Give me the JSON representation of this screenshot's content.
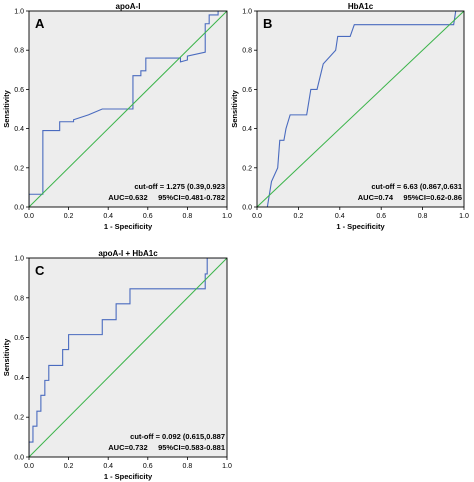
{
  "chart_data": [
    {
      "type": "line",
      "panel_letter": "A",
      "title": "apoA-I",
      "xlabel": "1 - Specificity",
      "ylabel": "Sensitivity",
      "xlim": [
        0,
        1
      ],
      "ylim": [
        0,
        1
      ],
      "xticks": [
        "0.0",
        "0.2",
        "0.4",
        "0.6",
        "0.8",
        "1.0"
      ],
      "yticks": [
        "0.0",
        "0.2",
        "0.4",
        "0.6",
        "0.8",
        "1.0"
      ],
      "grid": false,
      "series": [
        {
          "role": "roc-curve",
          "color": "#4a6bbf",
          "points": [
            [
              0,
              0
            ],
            [
              0,
              0.065
            ],
            [
              0.07,
              0.065
            ],
            [
              0.07,
              0.39
            ],
            [
              0.155,
              0.39
            ],
            [
              0.155,
              0.435
            ],
            [
              0.225,
              0.435
            ],
            [
              0.225,
              0.445
            ],
            [
              0.3,
              0.47
            ],
            [
              0.37,
              0.5
            ],
            [
              0.525,
              0.5
            ],
            [
              0.525,
              0.67
            ],
            [
              0.565,
              0.67
            ],
            [
              0.565,
              0.695
            ],
            [
              0.59,
              0.695
            ],
            [
              0.59,
              0.76
            ],
            [
              0.765,
              0.76
            ],
            [
              0.765,
              0.74
            ],
            [
              0.8,
              0.75
            ],
            [
              0.8,
              0.77
            ],
            [
              0.89,
              0.79
            ],
            [
              0.89,
              0.935
            ],
            [
              0.91,
              0.935
            ],
            [
              0.91,
              0.98
            ],
            [
              0.955,
              0.98
            ],
            [
              0.955,
              1
            ],
            [
              1,
              1
            ]
          ]
        },
        {
          "role": "reference-line",
          "color": "#3cb44b",
          "points": [
            [
              0,
              0
            ],
            [
              1,
              1
            ]
          ]
        }
      ],
      "annotation_lines": [
        "cut-off = 1.275 (0.39,0.923",
        "AUC=0.632     95%CI=0.481-0.782"
      ]
    },
    {
      "type": "line",
      "panel_letter": "B",
      "title": "HbA1c",
      "xlabel": "1 - Specificity",
      "ylabel": "Sensitivity",
      "xlim": [
        0,
        1
      ],
      "ylim": [
        0,
        1
      ],
      "xticks": [
        "0.0",
        "0.2",
        "0.4",
        "0.6",
        "0.8",
        "1.0"
      ],
      "yticks": [
        "0.0",
        "0.2",
        "0.4",
        "0.6",
        "0.8",
        "1.0"
      ],
      "grid": false,
      "series": [
        {
          "role": "roc-curve",
          "color": "#4a6bbf",
          "points": [
            [
              0.05,
              0
            ],
            [
              0.07,
              0.13
            ],
            [
              0.1,
              0.2
            ],
            [
              0.11,
              0.34
            ],
            [
              0.13,
              0.34
            ],
            [
              0.14,
              0.4
            ],
            [
              0.16,
              0.47
            ],
            [
              0.24,
              0.47
            ],
            [
              0.26,
              0.6
            ],
            [
              0.29,
              0.6
            ],
            [
              0.32,
              0.73
            ],
            [
              0.38,
              0.8
            ],
            [
              0.39,
              0.87
            ],
            [
              0.45,
              0.87
            ],
            [
              0.47,
              0.93
            ],
            [
              0.95,
              0.93
            ],
            [
              0.96,
              1
            ],
            [
              1,
              1
            ]
          ]
        },
        {
          "role": "reference-line",
          "color": "#3cb44b",
          "points": [
            [
              0,
              0
            ],
            [
              1,
              1
            ]
          ]
        }
      ],
      "annotation_lines": [
        "cut-off = 6.63 (0.867,0.631",
        "AUC=0.74     95%CI=0.62-0.86"
      ]
    },
    {
      "type": "line",
      "panel_letter": "C",
      "title": "apoA-I + HbA1c",
      "xlabel": "1 - Specificity",
      "ylabel": "Sensitivity",
      "xlim": [
        0,
        1
      ],
      "ylim": [
        0,
        1
      ],
      "xticks": [
        "0.0",
        "0.2",
        "0.4",
        "0.6",
        "0.8",
        "1.0"
      ],
      "yticks": [
        "0.0",
        "0.2",
        "0.4",
        "0.6",
        "0.8",
        "1.0"
      ],
      "grid": false,
      "series": [
        {
          "role": "roc-curve",
          "color": "#4a6bbf",
          "points": [
            [
              0,
              0
            ],
            [
              0,
              0.075
            ],
            [
              0.02,
              0.075
            ],
            [
              0.02,
              0.155
            ],
            [
              0.04,
              0.155
            ],
            [
              0.04,
              0.23
            ],
            [
              0.06,
              0.23
            ],
            [
              0.06,
              0.31
            ],
            [
              0.08,
              0.31
            ],
            [
              0.08,
              0.385
            ],
            [
              0.1,
              0.385
            ],
            [
              0.1,
              0.46
            ],
            [
              0.17,
              0.46
            ],
            [
              0.17,
              0.54
            ],
            [
              0.2,
              0.54
            ],
            [
              0.2,
              0.615
            ],
            [
              0.37,
              0.615
            ],
            [
              0.37,
              0.69
            ],
            [
              0.44,
              0.69
            ],
            [
              0.44,
              0.77
            ],
            [
              0.51,
              0.77
            ],
            [
              0.51,
              0.845
            ],
            [
              0.89,
              0.845
            ],
            [
              0.89,
              0.92
            ],
            [
              0.9,
              0.92
            ],
            [
              0.9,
              1
            ],
            [
              1,
              1
            ]
          ]
        },
        {
          "role": "reference-line",
          "color": "#3cb44b",
          "points": [
            [
              0,
              0
            ],
            [
              1,
              1
            ]
          ]
        }
      ],
      "annotation_lines": [
        "cut-off = 0.092 (0.615,0.887",
        "AUC=0.732     95%CI=0.583-0.881"
      ]
    }
  ],
  "style": {
    "plot_background": "#ededed",
    "frame_color": "#000000",
    "text_color": "#000000"
  }
}
